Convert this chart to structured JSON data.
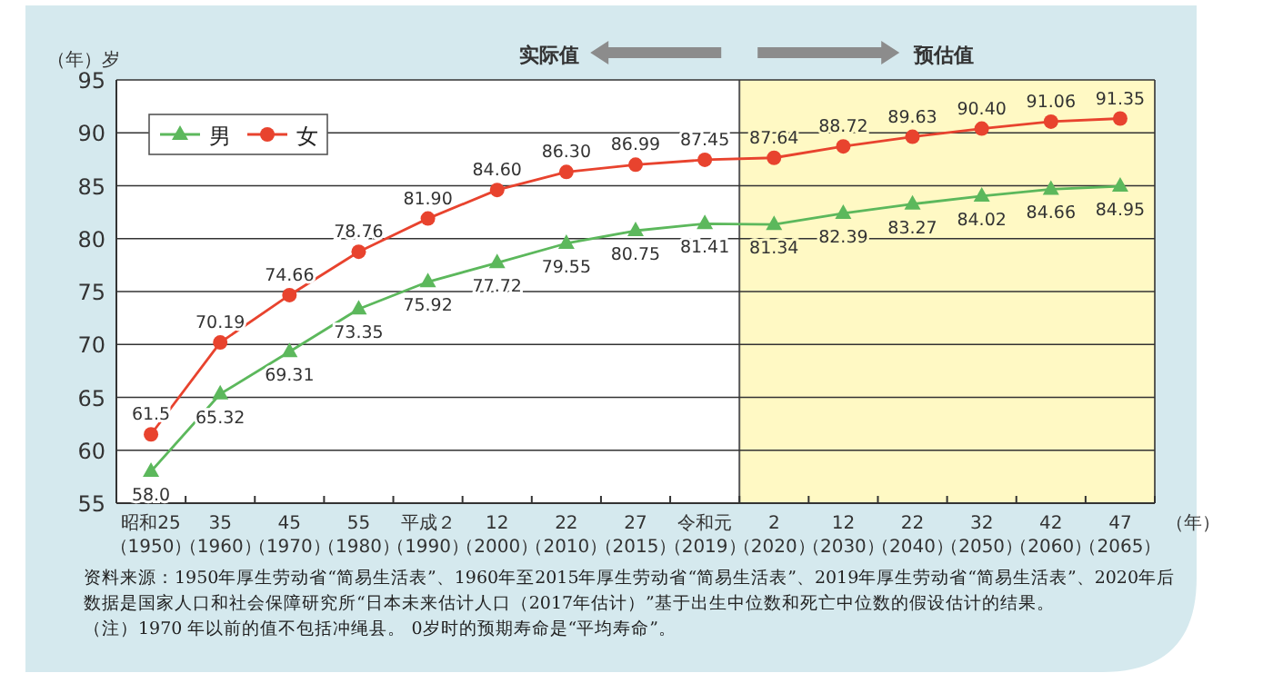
{
  "chart_data": {
    "type": "line",
    "ylabel": "（年）岁",
    "xlabel": "（年）",
    "categories": [
      "昭和25（1950）",
      "35（1960）",
      "45（1970）",
      "55（1980）",
      "平成２（1990）",
      "12（2000）",
      "22（2010）",
      "27（2015）",
      "令和元（2019）",
      "2（2020）",
      "12（2030）",
      "22（2040）",
      "32（2050）",
      "42（2060）",
      "47（2065）"
    ],
    "series": [
      {
        "name": "男",
        "color": "#5cb85c",
        "marker": "triangle",
        "values": [
          58.0,
          65.32,
          69.31,
          73.35,
          75.92,
          77.72,
          79.55,
          80.75,
          81.41,
          81.34,
          82.39,
          83.27,
          84.02,
          84.66,
          84.95
        ],
        "value_labels": [
          "58.0",
          "65.32",
          "69.31",
          "73.35",
          "75.92",
          "77.72",
          "79.55",
          "80.75",
          "81.41",
          "81.34",
          "82.39",
          "83.27",
          "84.02",
          "84.66",
          "84.95"
        ]
      },
      {
        "name": "女",
        "color": "#e8432e",
        "marker": "circle",
        "values": [
          61.5,
          70.19,
          74.66,
          78.76,
          81.9,
          84.6,
          86.3,
          86.99,
          87.45,
          87.64,
          88.72,
          89.63,
          90.4,
          91.06,
          91.35
        ],
        "value_labels": [
          "61.5",
          "70.19",
          "74.66",
          "78.76",
          "81.90",
          "84.60",
          "86.30",
          "86.99",
          "87.45",
          "87.64",
          "88.72",
          "89.63",
          "90.40",
          "91.06",
          "91.35"
        ]
      }
    ],
    "ylim": [
      55,
      95
    ],
    "yticks": [
      55,
      60,
      65,
      70,
      75,
      80,
      85,
      90,
      95
    ],
    "grid": "y",
    "legend": "top left",
    "bands": [
      {
        "axis": "x",
        "from": "2（2020）",
        "to": "47（2065）",
        "label": "预估值",
        "color": "#fff9c4"
      }
    ],
    "annotations": [
      "实际值",
      "资料来源：1950年厚生劳动省“简易生活表”、1960年至2015年厚生劳动省“简易生活表”、2019年厚生劳动省“简易生活表”、2020年后数据是国家人口和社会保障研究所“日本未来估计人口（2017年估计）”基于出生中位数和死亡中位数的假设估计的结果。",
      "（注）1970 年以前的值不包括冲绳县。 0岁时的预期寿命是“平均寿命”。"
    ]
  }
}
